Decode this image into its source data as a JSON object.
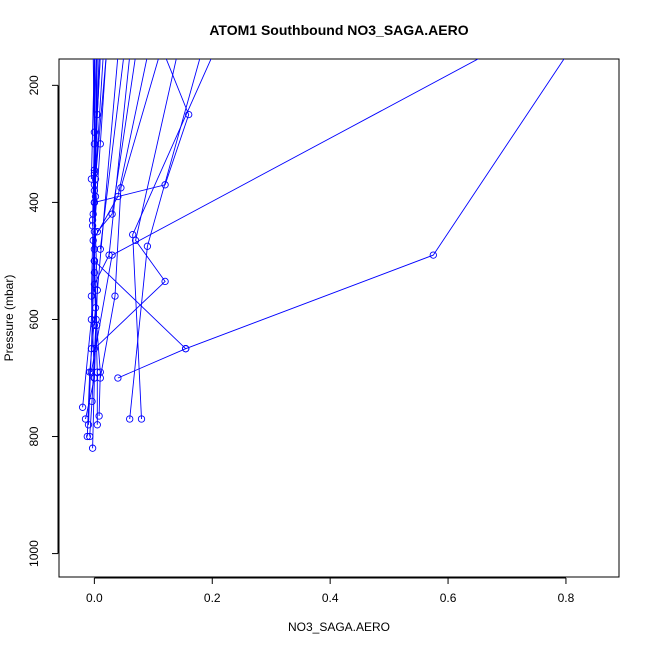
{
  "chart_data": {
    "type": "scatter",
    "title": "ATOM1 Southbound NO3_SAGA.AERO",
    "xlabel": "NO3_SAGA.AERO",
    "ylabel": "Pressure (mbar)",
    "xlim": [
      -0.06,
      0.89
    ],
    "ylim": [
      1040,
      155
    ],
    "y_reversed": true,
    "x_ticks": [
      0.0,
      0.2,
      0.4,
      0.6,
      0.8
    ],
    "x_tick_labels": [
      "0.0",
      "0.2",
      "0.4",
      "0.6",
      "0.8"
    ],
    "y_ticks": [
      200,
      400,
      600,
      800,
      1000
    ],
    "y_tick_labels": [
      "200",
      "400",
      "600",
      "800",
      "1000"
    ],
    "grid": false,
    "color": "#0000ff",
    "marker": "open-circle",
    "series": [
      {
        "points": [
          [
            -0.02,
            750
          ],
          [
            -0.005,
            600
          ],
          [
            0.0,
            450
          ],
          [
            0.01,
            300
          ],
          [
            0.02,
            150
          ]
        ]
      },
      {
        "points": [
          [
            -0.015,
            770
          ],
          [
            0.0,
            700
          ],
          [
            0.005,
            550
          ],
          [
            0.0,
            400
          ],
          [
            0.005,
            250
          ],
          [
            0.01,
            150
          ]
        ]
      },
      {
        "points": [
          [
            -0.01,
            780
          ],
          [
            -0.005,
            650
          ],
          [
            0.0,
            500
          ],
          [
            0.0,
            350
          ],
          [
            0.0,
            150
          ]
        ]
      },
      {
        "points": [
          [
            -0.012,
            800
          ],
          [
            -0.008,
            690
          ],
          [
            0.002,
            580
          ],
          [
            -0.003,
            430
          ],
          [
            0.0,
            280
          ],
          [
            0.003,
            150
          ]
        ]
      },
      {
        "points": [
          [
            -0.003,
            820
          ],
          [
            0.0,
            700
          ],
          [
            -0.005,
            560
          ],
          [
            -0.002,
            420
          ],
          [
            0.0,
            300
          ],
          [
            -0.002,
            150
          ]
        ]
      },
      {
        "points": [
          [
            -0.008,
            800
          ],
          [
            -0.004,
            740
          ],
          [
            0.003,
            600
          ],
          [
            0.0,
            480
          ],
          [
            0.002,
            360
          ],
          [
            0.0,
            150
          ]
        ]
      },
      {
        "points": [
          [
            0.005,
            780
          ],
          [
            0.005,
            690
          ],
          [
            0.0,
            520
          ],
          [
            0.002,
            390
          ],
          [
            0.004,
            150
          ]
        ]
      },
      {
        "points": [
          [
            0.008,
            765
          ],
          [
            0.01,
            690
          ],
          [
            0.004,
            610
          ],
          [
            0.0,
            500
          ],
          [
            0.005,
            150
          ]
        ]
      },
      {
        "points": [
          [
            0.06,
            770
          ],
          [
            0.09,
            475
          ],
          [
            0.18,
            150
          ]
        ]
      },
      {
        "points": [
          [
            0.08,
            770
          ],
          [
            0.065,
            455
          ],
          [
            0.2,
            150
          ]
        ]
      },
      {
        "points": [
          [
            0.04,
            700
          ],
          [
            0.155,
            650
          ],
          [
            0.575,
            490
          ],
          [
            0.8,
            150
          ]
        ]
      },
      {
        "points": [
          [
            -0.005,
            690
          ],
          [
            0.03,
            490
          ],
          [
            0.66,
            150
          ]
        ]
      },
      {
        "points": [
          [
            0.0,
            650
          ],
          [
            0.12,
            535
          ],
          [
            0.07,
            465
          ],
          [
            0.14,
            150
          ]
        ]
      },
      {
        "points": [
          [
            0.01,
            700
          ],
          [
            0.035,
            560
          ],
          [
            0.045,
            375
          ],
          [
            0.11,
            150
          ]
        ]
      },
      {
        "points": [
          [
            0.0,
            500
          ],
          [
            0.155,
            650
          ]
        ]
      },
      {
        "points": [
          [
            0.0,
            400
          ],
          [
            0.12,
            370
          ],
          [
            0.16,
            250
          ],
          [
            0.12,
            150
          ]
        ]
      },
      {
        "points": [
          [
            0.0,
            380
          ],
          [
            0.02,
            150
          ]
        ]
      },
      {
        "points": [
          [
            -0.002,
            465
          ],
          [
            0.04,
            390
          ],
          [
            0.09,
            150
          ]
        ]
      },
      {
        "points": [
          [
            0.005,
            450
          ],
          [
            0.03,
            420
          ],
          [
            0.07,
            150
          ]
        ]
      },
      {
        "points": [
          [
            0.0,
            540
          ],
          [
            0.025,
            490
          ],
          [
            0.06,
            150
          ]
        ]
      },
      {
        "points": [
          [
            -0.005,
            360
          ],
          [
            0.0,
            150
          ]
        ]
      },
      {
        "points": [
          [
            0.0,
            370
          ],
          [
            0.008,
            150
          ]
        ]
      },
      {
        "points": [
          [
            0.01,
            480
          ],
          [
            0.05,
            150
          ]
        ]
      },
      {
        "points": [
          [
            0.0,
            610
          ],
          [
            0.04,
            150
          ]
        ]
      },
      {
        "points": [
          [
            -0.003,
            440
          ],
          [
            0.015,
            150
          ]
        ]
      },
      {
        "points": [
          [
            0.0,
            345
          ],
          [
            0.01,
            150
          ]
        ]
      }
    ]
  }
}
